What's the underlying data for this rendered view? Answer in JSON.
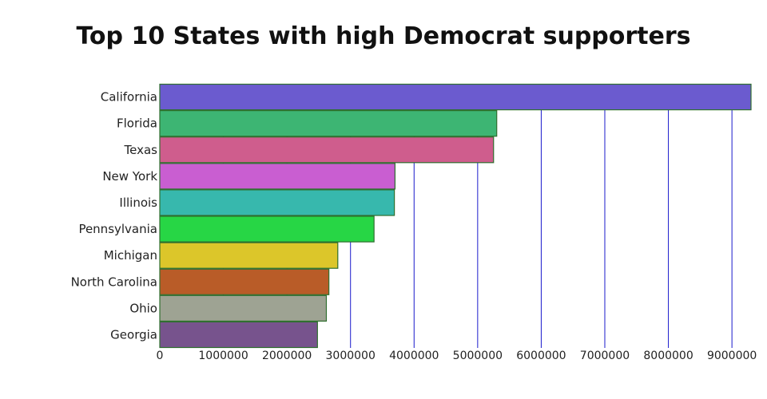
{
  "chart_data": {
    "type": "bar",
    "orientation": "horizontal",
    "title": "Top 10 States with high Democrat supporters",
    "xlabel": "",
    "ylabel": "",
    "categories": [
      "California",
      "Florida",
      "Texas",
      "New York",
      "Illinois",
      "Pennsylvania",
      "Michigan",
      "North Carolina",
      "Ohio",
      "Georgia"
    ],
    "values": [
      9300000,
      5300000,
      5250000,
      3700000,
      3690000,
      3370000,
      2800000,
      2660000,
      2620000,
      2480000
    ],
    "colors": [
      "#6b5bcf",
      "#3db573",
      "#cf5d8d",
      "#c95ed1",
      "#37b8ad",
      "#27d645",
      "#dcc62a",
      "#b95c28",
      "#9ea393",
      "#77538d"
    ],
    "bar_edge_color": "#2f6f2f",
    "gridline_color": "#1a1acc",
    "xlim": [
      0,
      9300000
    ],
    "xticks": [
      0,
      1000000,
      2000000,
      3000000,
      4000000,
      5000000,
      6000000,
      7000000,
      8000000,
      9000000
    ],
    "xtick_labels": [
      "0",
      "1000000",
      "2000000",
      "3000000",
      "4000000",
      "5000000",
      "6000000",
      "7000000",
      "8000000",
      "9000000"
    ],
    "grid": true
  }
}
